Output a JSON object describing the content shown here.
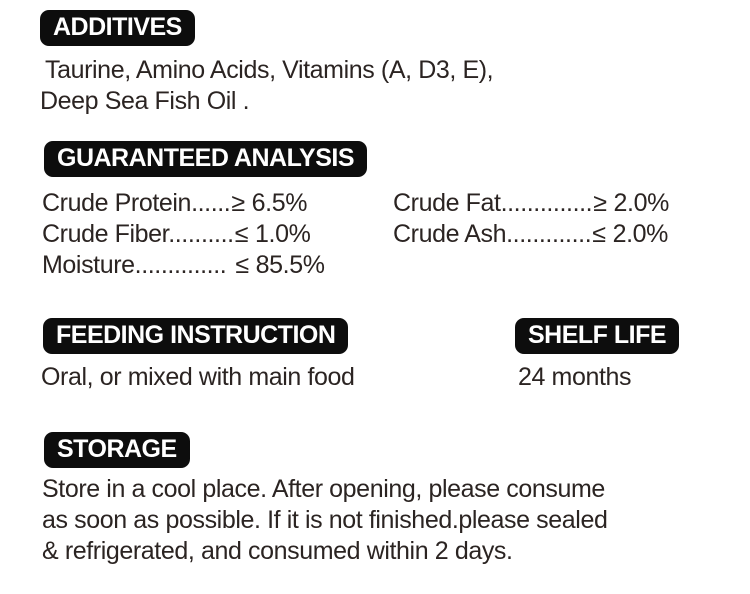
{
  "theme": {
    "page_bg": "#ffffff",
    "text_color": "#2b2422",
    "badge_bg": "#0d0d0d",
    "badge_text_color": "#ffffff"
  },
  "additives": {
    "title": "ADDITIVES",
    "lines": [
      "Taurine, Amino Acids, Vitamins (A, D3, E),",
      "Deep Sea Fish Oil ."
    ]
  },
  "guaranteed_analysis": {
    "title": "GUARANTEED ANALYSIS",
    "left": [
      {
        "label": "Crude Protein",
        "dots": "......",
        "operator": "≥",
        "value": "6.5%"
      },
      {
        "label": "Crude Fiber",
        "dots": "..........",
        "operator": "≤",
        "value": "1.0%"
      },
      {
        "label": "Moisture",
        "dots": "..............",
        "operator": "≤",
        "value": "85.5%"
      }
    ],
    "right": [
      {
        "label": "Crude Fat",
        "dots": "..............",
        "operator": "≥",
        "value": "2.0%"
      },
      {
        "label": "Crude Ash",
        "dots": ".............",
        "operator": "≤",
        "value": "2.0%"
      }
    ]
  },
  "feeding_instruction": {
    "title": "FEEDING INSTRUCTION",
    "text": "Oral, or mixed with main food"
  },
  "shelf_life": {
    "title": "SHELF LIFE",
    "text": "24 months"
  },
  "storage": {
    "title": "STORAGE",
    "lines": [
      "Store in a cool place. After opening, please consume",
      "as soon as possible. If it is not finished.please sealed",
      "& refrigerated, and consumed within 2 days."
    ]
  }
}
